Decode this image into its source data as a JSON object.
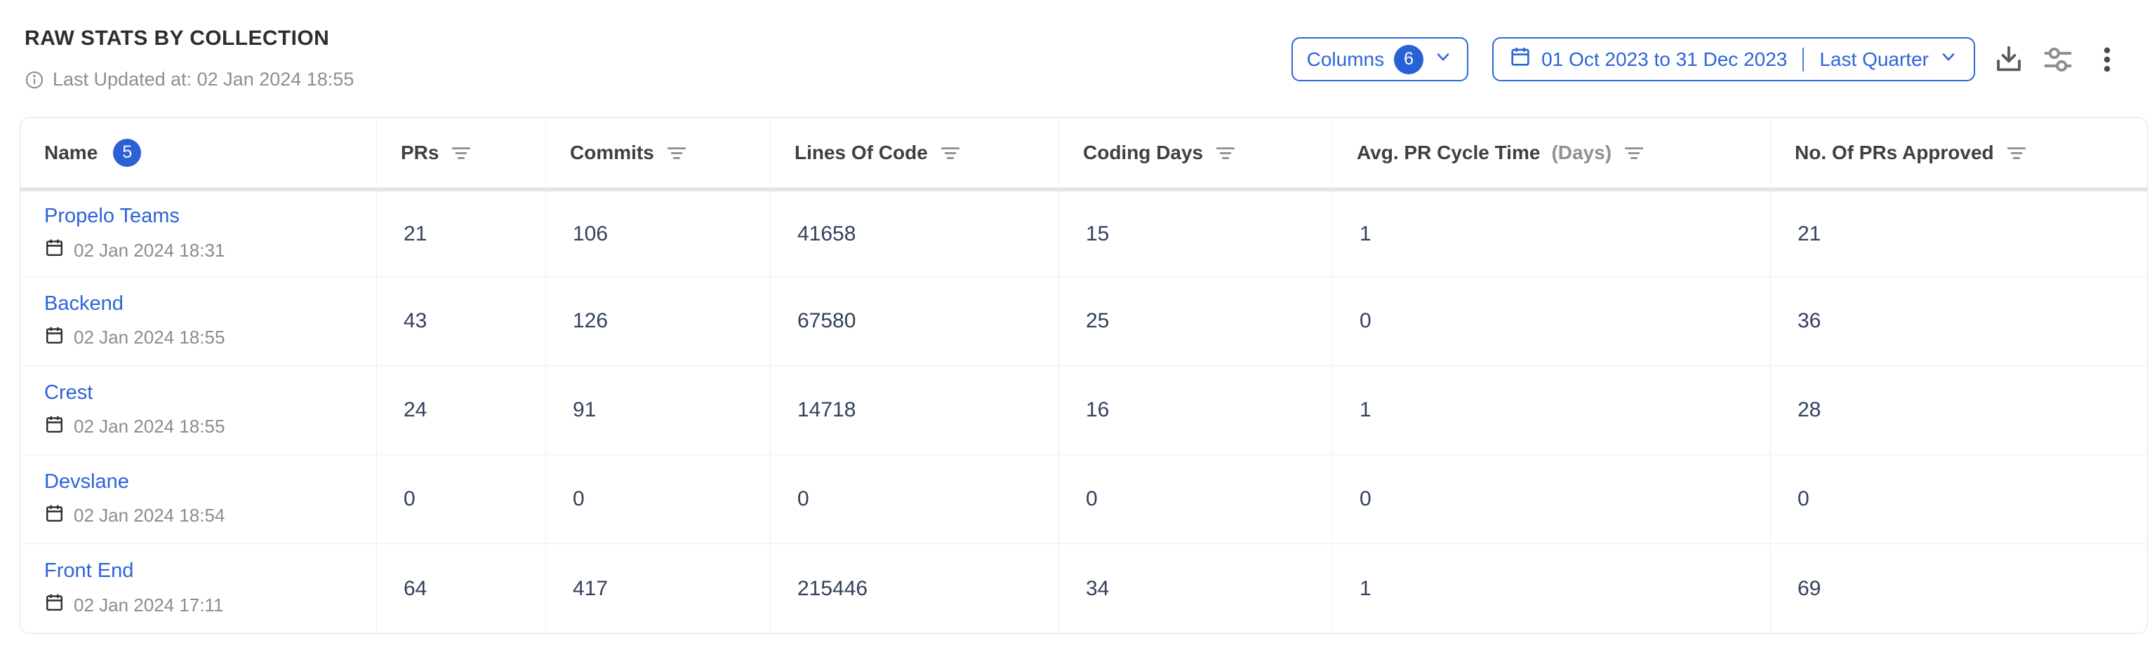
{
  "page": {
    "title": "RAW STATS BY COLLECTION",
    "last_updated": "Last Updated at: 02 Jan 2024 18:55"
  },
  "toolbar": {
    "columns_button": {
      "label": "Columns",
      "badge": "6"
    },
    "date_filter": {
      "range": "01 Oct 2023 to 31 Dec 2023",
      "preset": "Last Quarter"
    },
    "icons": {
      "download": "download",
      "settings": "sliders",
      "more": "kebab-menu"
    }
  },
  "table": {
    "columns": [
      {
        "label": "Name",
        "badge": "5"
      },
      {
        "label": "PRs"
      },
      {
        "label": "Commits"
      },
      {
        "label": "Lines Of Code"
      },
      {
        "label": "Coding Days"
      },
      {
        "label": "Avg. PR Cycle Time",
        "suffix": "(Days)"
      },
      {
        "label": "No. Of PRs Approved"
      }
    ],
    "rows": [
      {
        "name": "Propelo Teams",
        "updated_at": "02 Jan 2024 18:31",
        "prs": "21",
        "commits": "106",
        "lines_of_code": "41658",
        "coding_days": "15",
        "avg_pr_cycle_time": "1",
        "prs_approved": "21"
      },
      {
        "name": "Backend",
        "updated_at": "02 Jan 2024 18:55",
        "prs": "43",
        "commits": "126",
        "lines_of_code": "67580",
        "coding_days": "25",
        "avg_pr_cycle_time": "0",
        "prs_approved": "36"
      },
      {
        "name": "Crest",
        "updated_at": "02 Jan 2024 18:55",
        "prs": "24",
        "commits": "91",
        "lines_of_code": "14718",
        "coding_days": "16",
        "avg_pr_cycle_time": "1",
        "prs_approved": "28"
      },
      {
        "name": "Devslane",
        "updated_at": "02 Jan 2024 18:54",
        "prs": "0",
        "commits": "0",
        "lines_of_code": "0",
        "coding_days": "0",
        "avg_pr_cycle_time": "0",
        "prs_approved": "0"
      },
      {
        "name": "Front End",
        "updated_at": "02 Jan 2024 17:11",
        "prs": "64",
        "commits": "417",
        "lines_of_code": "215446",
        "coding_days": "34",
        "avg_pr_cycle_time": "1",
        "prs_approved": "69"
      }
    ]
  },
  "colors": {
    "accent_blue": "#2b66d8",
    "badge_blue": "#2d5fd6",
    "link_blue": "#2c63da",
    "number_text": "#33405c",
    "muted_text": "#8c8c8c",
    "header_text": "#3f3f42",
    "border": "#ececef"
  }
}
